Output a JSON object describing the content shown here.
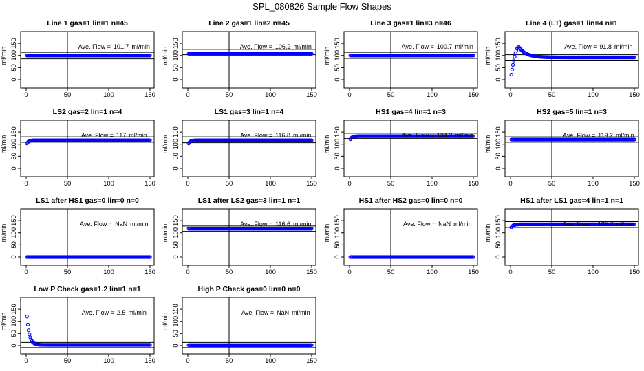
{
  "figure": {
    "main_title": "SPL_080826  Sample Flow Shapes",
    "annotation_prefix": "Ave. Flow =",
    "annotation_unit": "ml/min",
    "series_color": "#0000ff"
  },
  "chart_data": [
    {
      "type": "scatter",
      "title": "Line 1 gas=1 lin=1 n=45",
      "ylabel": "ml/min",
      "xlim": [
        0,
        150
      ],
      "ylim": [
        0,
        190
      ],
      "xticks": [
        0,
        50,
        100,
        150
      ],
      "yticks": [
        0,
        50,
        100,
        150
      ],
      "vline_x": 50,
      "ref_lines": [
        86,
        113
      ],
      "ave_flow": "101.7",
      "profile": "flat",
      "level": 100
    },
    {
      "type": "scatter",
      "title": "Line 2 gas=1 lin=2 n=45",
      "ylabel": "ml/min",
      "xlim": [
        0,
        150
      ],
      "ylim": [
        0,
        190
      ],
      "xticks": [
        0,
        50,
        100,
        150
      ],
      "yticks": [
        0,
        50,
        100,
        150
      ],
      "vline_x": 50,
      "ref_lines": [
        103,
        125
      ],
      "ave_flow": "106.2",
      "profile": "flat",
      "level": 107
    },
    {
      "type": "scatter",
      "title": "Line 3 gas=1 lin=3 n=46",
      "ylabel": "ml/min",
      "xlim": [
        0,
        150
      ],
      "ylim": [
        0,
        190
      ],
      "xticks": [
        0,
        50,
        100,
        150
      ],
      "yticks": [
        0,
        50,
        100,
        150
      ],
      "vline_x": 50,
      "ref_lines": [
        88,
        113
      ],
      "ave_flow": "100.7",
      "profile": "flat",
      "level": 100
    },
    {
      "type": "scatter",
      "title": "Line 4 (LT) gas=1 lin=4 n=1",
      "ylabel": "ml/min",
      "xlim": [
        0,
        150
      ],
      "ylim": [
        0,
        190
      ],
      "xticks": [
        0,
        50,
        100,
        150
      ],
      "yticks": [
        0,
        50,
        100,
        150
      ],
      "vline_x": 50,
      "ref_lines": [
        78,
        103
      ],
      "ave_flow": "91.8",
      "profile": "overshoot",
      "level": 92
    },
    {
      "type": "scatter",
      "title": "LS2 gas=2 lin=1 n=4",
      "ylabel": "ml/min",
      "xlim": [
        0,
        150
      ],
      "ylim": [
        0,
        190
      ],
      "xticks": [
        0,
        50,
        100,
        150
      ],
      "yticks": [
        0,
        50,
        100,
        150
      ],
      "vline_x": 50,
      "ref_lines": [
        108,
        130
      ],
      "ave_flow": "117",
      "profile": "ramp",
      "level": 116
    },
    {
      "type": "scatter",
      "title": "LS1 gas=3 lin=1 n=4",
      "ylabel": "ml/min",
      "xlim": [
        0,
        150
      ],
      "ylim": [
        0,
        190
      ],
      "xticks": [
        0,
        50,
        100,
        150
      ],
      "yticks": [
        0,
        50,
        100,
        150
      ],
      "vline_x": 50,
      "ref_lines": [
        106,
        130
      ],
      "ave_flow": "116.8",
      "profile": "ramp",
      "level": 116
    },
    {
      "type": "scatter",
      "title": "HS1 gas=4 lin=1 n=3",
      "ylabel": "ml/min",
      "xlim": [
        0,
        150
      ],
      "ylim": [
        0,
        190
      ],
      "xticks": [
        0,
        50,
        100,
        150
      ],
      "yticks": [
        0,
        50,
        100,
        150
      ],
      "vline_x": 50,
      "ref_lines": [
        123,
        145
      ],
      "ave_flow": "134.2",
      "profile": "ramp",
      "level": 133
    },
    {
      "type": "scatter",
      "title": "HS2 gas=5 lin=1 n=3",
      "ylabel": "ml/min",
      "xlim": [
        0,
        150
      ],
      "ylim": [
        0,
        190
      ],
      "xticks": [
        0,
        50,
        100,
        150
      ],
      "yticks": [
        0,
        50,
        100,
        150
      ],
      "vline_x": 50,
      "ref_lines": [
        108,
        130
      ],
      "ave_flow": "119.2",
      "profile": "flat",
      "level": 119
    },
    {
      "type": "scatter",
      "title": "LS1 after HS1 gas=0 lin=0 n=0",
      "ylabel": "ml/min",
      "xlim": [
        0,
        150
      ],
      "ylim": [
        0,
        190
      ],
      "xticks": [
        0,
        50,
        100,
        150
      ],
      "yticks": [
        0,
        50,
        100,
        150
      ],
      "vline_x": 50,
      "ref_lines": [],
      "ave_flow": "NaN",
      "profile": "flat",
      "level": 0
    },
    {
      "type": "scatter",
      "title": "LS1 after LS2 gas=3 lin=1 n=1",
      "ylabel": "ml/min",
      "xlim": [
        0,
        150
      ],
      "ylim": [
        0,
        190
      ],
      "xticks": [
        0,
        50,
        100,
        150
      ],
      "yticks": [
        0,
        50,
        100,
        150
      ],
      "vline_x": 50,
      "ref_lines": [
        106,
        128
      ],
      "ave_flow": "116.6",
      "profile": "flat",
      "level": 117
    },
    {
      "type": "scatter",
      "title": "HS1 after HS2 gas=0 lin=0 n=0",
      "ylabel": "ml/min",
      "xlim": [
        0,
        150
      ],
      "ylim": [
        0,
        190
      ],
      "xticks": [
        0,
        50,
        100,
        150
      ],
      "yticks": [
        0,
        50,
        100,
        150
      ],
      "vline_x": 50,
      "ref_lines": [],
      "ave_flow": "NaN",
      "profile": "flat",
      "level": 0
    },
    {
      "type": "scatter",
      "title": "HS1 after LS1 gas=4 lin=1 n=1",
      "ylabel": "ml/min",
      "xlim": [
        0,
        150
      ],
      "ylim": [
        0,
        190
      ],
      "xticks": [
        0,
        50,
        100,
        150
      ],
      "yticks": [
        0,
        50,
        100,
        150
      ],
      "vline_x": 50,
      "ref_lines": [
        122,
        146
      ],
      "ave_flow": "135.7",
      "profile": "ramp",
      "level": 135
    },
    {
      "type": "scatter",
      "title": "Low P Check gas=1.2 lin=1 n=1",
      "ylabel": "ml/min",
      "xlim": [
        0,
        150
      ],
      "ylim": [
        0,
        190
      ],
      "xticks": [
        0,
        50,
        100,
        150
      ],
      "yticks": [
        0,
        50,
        100,
        150
      ],
      "vline_x": 50,
      "ref_lines": [
        -8,
        13
      ],
      "ave_flow": "2.5",
      "profile": "decay",
      "level": 3
    },
    {
      "type": "scatter",
      "title": "High P Check gas=0 lin=0 n=0",
      "ylabel": "ml/min",
      "xlim": [
        0,
        150
      ],
      "ylim": [
        0,
        190
      ],
      "xticks": [
        0,
        50,
        100,
        150
      ],
      "yticks": [
        0,
        50,
        100,
        150
      ],
      "vline_x": 50,
      "ref_lines": [
        -8,
        13
      ],
      "ave_flow": "NaN",
      "profile": "flat",
      "level": 2
    }
  ]
}
